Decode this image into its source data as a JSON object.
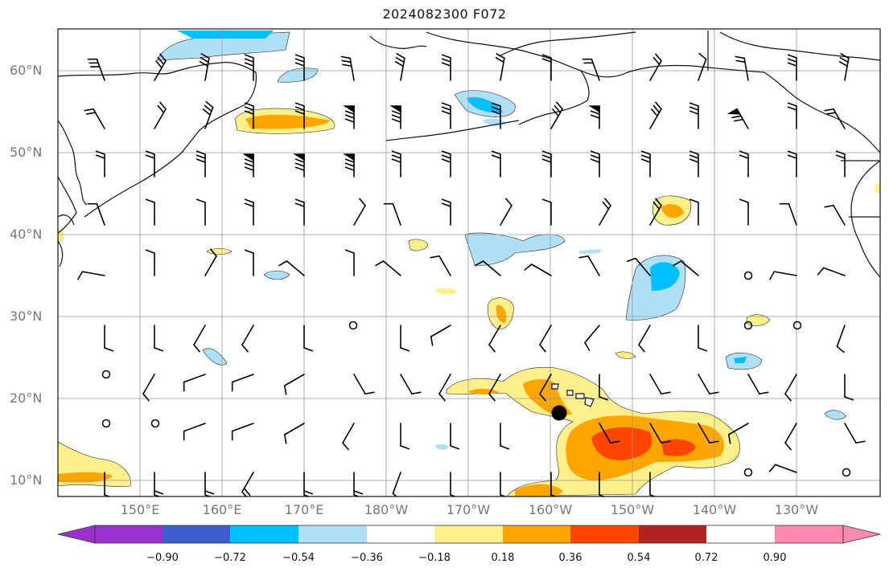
{
  "title": "2024082300 F072",
  "map": {
    "lat_labels": [
      "60°N",
      "50°N",
      "40°N",
      "30°N",
      "20°N",
      "10°N"
    ],
    "lon_labels": [
      "150°E",
      "160°E",
      "170°E",
      "180°W",
      "170°W",
      "160°W",
      "150°W",
      "140°W",
      "130°W"
    ],
    "storm_marker": "black-dot-near-hawaii"
  },
  "colorbar": {
    "ticks": [
      "−0.90",
      "−0.72",
      "−0.54",
      "−0.36",
      "−0.18",
      "0.18",
      "0.36",
      "0.54",
      "0.72",
      "0.90"
    ],
    "colors": [
      "#9b30d0",
      "#00008b",
      "#3a5fcd",
      "#00bfff",
      "#b0e0f8",
      "#ffffff",
      "#fff08c",
      "#ffa500",
      "#ff4500",
      "#b22222",
      "#ff89b0"
    ]
  }
}
